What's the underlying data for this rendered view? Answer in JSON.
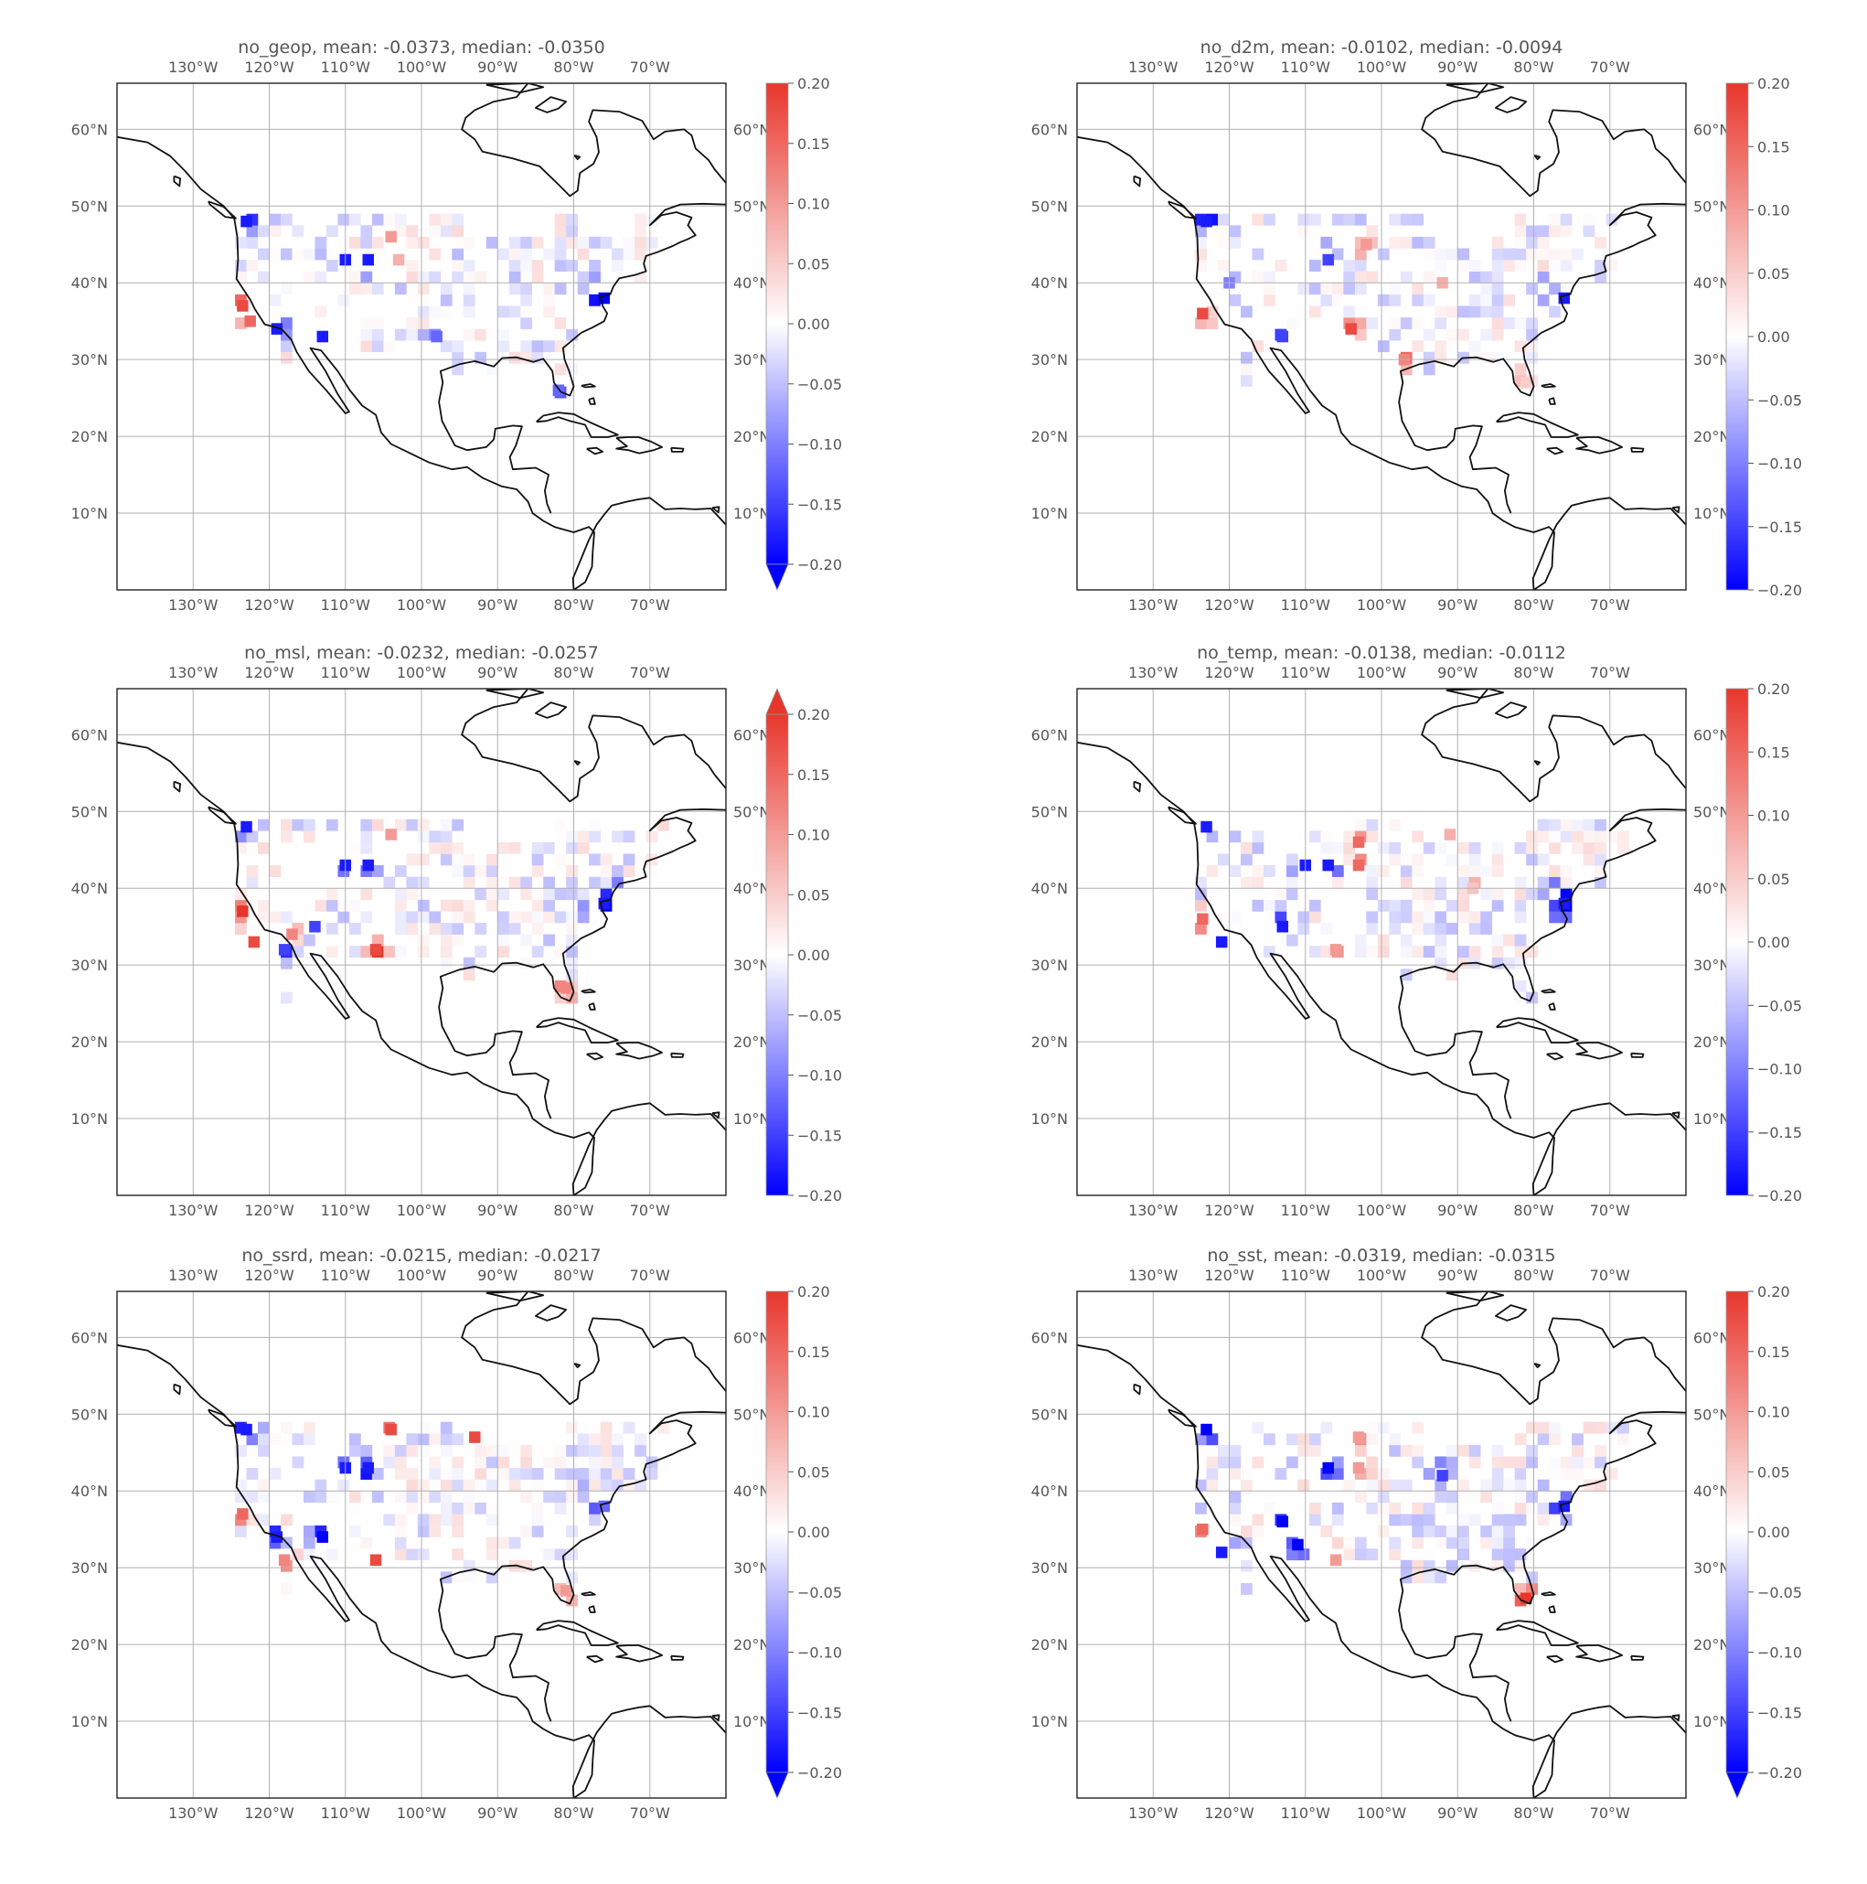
{
  "panels": [
    {
      "id": "no_geop",
      "title": "no_geop,  mean: -0.0373,  median: -0.0350",
      "cbar_extend": "min",
      "seed": 11,
      "hotspots": [
        [
          -123.5,
          37,
          0.18
        ],
        [
          -122.5,
          35,
          0.15
        ],
        [
          -104,
          46,
          0.1
        ],
        [
          -103,
          43,
          0.08
        ]
      ],
      "coldspots": [
        [
          -76,
          38,
          -0.2
        ],
        [
          -110,
          43,
          -0.18
        ],
        [
          -107,
          43,
          -0.18
        ],
        [
          -113,
          33,
          -0.18
        ],
        [
          -119,
          34,
          -0.18
        ],
        [
          -82,
          26,
          -0.12
        ],
        [
          -98,
          33,
          -0.12
        ],
        [
          -123,
          48,
          -0.18
        ]
      ]
    },
    {
      "id": "no_d2m",
      "title": "no_d2m,  mean: -0.0102,  median: -0.0094",
      "cbar_extend": "neither",
      "seed": 23,
      "hotspots": [
        [
          -123.5,
          36,
          0.18
        ],
        [
          -104,
          34,
          0.18
        ],
        [
          -102,
          45,
          0.1
        ],
        [
          -97,
          30,
          0.12
        ],
        [
          -92,
          40,
          0.08
        ],
        [
          -81,
          27,
          0.05
        ]
      ],
      "coldspots": [
        [
          -76,
          38,
          -0.18
        ],
        [
          -107,
          43,
          -0.15
        ],
        [
          -113,
          33,
          -0.15
        ],
        [
          -120,
          40,
          -0.1
        ],
        [
          -123,
          48,
          -0.18
        ]
      ]
    },
    {
      "id": "no_msl",
      "title": "no_msl,  mean: -0.0232,  median: -0.0257",
      "cbar_extend": "max",
      "seed": 37,
      "hotspots": [
        [
          -123.5,
          37,
          0.2
        ],
        [
          -122,
          33,
          0.18
        ],
        [
          -106,
          32,
          0.18
        ],
        [
          -104,
          47,
          0.1
        ],
        [
          -81,
          27,
          0.12
        ],
        [
          -117,
          34,
          0.12
        ]
      ],
      "coldspots": [
        [
          -76,
          38,
          -0.18
        ],
        [
          -110,
          43,
          -0.18
        ],
        [
          -107,
          43,
          -0.18
        ],
        [
          -118,
          32,
          -0.15
        ],
        [
          -123,
          48,
          -0.18
        ],
        [
          -114,
          35,
          -0.15
        ]
      ]
    },
    {
      "id": "no_temp",
      "title": "no_temp,  mean: -0.0138,  median: -0.0112",
      "cbar_extend": "neither",
      "seed": 41,
      "hotspots": [
        [
          -123.5,
          36,
          0.15
        ],
        [
          -103,
          46,
          0.15
        ],
        [
          -103,
          43,
          0.15
        ],
        [
          -91,
          47,
          0.08
        ],
        [
          -88,
          40,
          0.06
        ],
        [
          -106,
          32,
          0.1
        ]
      ],
      "coldspots": [
        [
          -76,
          38,
          -0.18
        ],
        [
          -110,
          43,
          -0.18
        ],
        [
          -107,
          43,
          -0.18
        ],
        [
          -113,
          35,
          -0.18
        ],
        [
          -121,
          33,
          -0.18
        ],
        [
          -123,
          48,
          -0.18
        ]
      ]
    },
    {
      "id": "no_ssrd",
      "title": "no_ssrd,  mean: -0.0215,  median: -0.0217",
      "cbar_extend": "min",
      "seed": 53,
      "hotspots": [
        [
          -123.5,
          37,
          0.15
        ],
        [
          -104,
          48,
          0.18
        ],
        [
          -93,
          47,
          0.18
        ],
        [
          -106,
          31,
          0.18
        ],
        [
          -118,
          31,
          0.12
        ],
        [
          -81,
          27,
          0.1
        ]
      ],
      "coldspots": [
        [
          -110,
          43,
          -0.18
        ],
        [
          -107,
          43,
          -0.18
        ],
        [
          -113,
          34,
          -0.2
        ],
        [
          -119,
          34,
          -0.18
        ],
        [
          -123,
          48,
          -0.18
        ],
        [
          -76,
          38,
          -0.12
        ]
      ]
    },
    {
      "id": "no_sst",
      "title": "no_sst,  mean: -0.0319,  median: -0.0315",
      "cbar_extend": "min",
      "seed": 67,
      "hotspots": [
        [
          -81,
          26,
          0.2
        ],
        [
          -123.5,
          35,
          0.15
        ],
        [
          -103,
          47,
          0.1
        ],
        [
          -103,
          43,
          0.1
        ],
        [
          -106,
          31,
          0.1
        ]
      ],
      "coldspots": [
        [
          -76,
          38,
          -0.18
        ],
        [
          -107,
          43,
          -0.2
        ],
        [
          -113,
          36,
          -0.2
        ],
        [
          -111,
          33,
          -0.2
        ],
        [
          -121,
          32,
          -0.18
        ],
        [
          -123,
          48,
          -0.2
        ],
        [
          -92,
          42,
          -0.15
        ]
      ]
    }
  ],
  "axes": {
    "lon_ticks": [
      "130°W",
      "120°W",
      "110°W",
      "100°W",
      "90°W",
      "80°W",
      "70°W"
    ],
    "lon_tick_values": [
      -130,
      -120,
      -110,
      -100,
      -90,
      -80,
      -70
    ],
    "lat_ticks": [
      "60°N",
      "50°N",
      "40°N",
      "30°N",
      "20°N",
      "10°N"
    ],
    "lat_tick_values": [
      60,
      50,
      40,
      30,
      20,
      10
    ],
    "lon_range": [
      -140,
      -60
    ],
    "lat_range": [
      0,
      66
    ],
    "grid": true
  },
  "colorbar": {
    "ticks": [
      "0.20",
      "0.15",
      "0.10",
      "0.05",
      "0.00",
      "−0.05",
      "−0.10",
      "−0.15",
      "−0.20"
    ],
    "tick_values": [
      0.2,
      0.15,
      0.1,
      0.05,
      0,
      -0.05,
      -0.1,
      -0.15,
      -0.2
    ],
    "range": [
      -0.2,
      0.2
    ],
    "colormap": "bwr"
  },
  "colors": {
    "cold": "#0000ff",
    "neutral": "#ffffff",
    "warm": "#e8362c",
    "coast": "#111111",
    "grid": "#b0b0b0"
  }
}
